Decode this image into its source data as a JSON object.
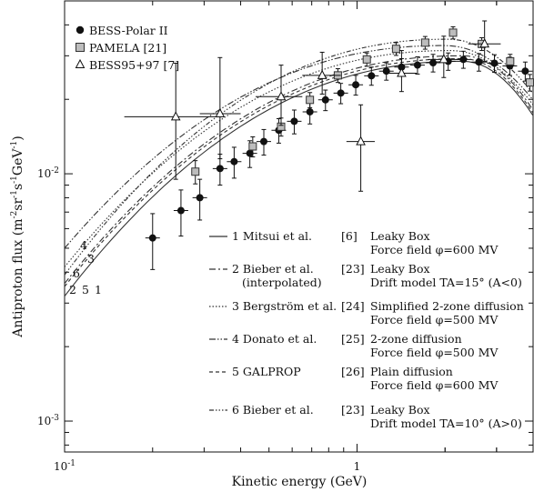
{
  "chart_data": {
    "type": "scatter",
    "xlabel": "Kinetic energy (GeV)",
    "ylabel": "Antiproton flux (m",
    "ylabel_parts": [
      "Antiproton flux (m",
      "-2",
      "sr",
      "-1",
      "s",
      "-1",
      "GeV",
      "-1",
      ")"
    ],
    "x_scale": "log",
    "y_scale": "log",
    "xlim": [
      0.1,
      4.0
    ],
    "ylim": [
      0.00075,
      0.05
    ],
    "x_tick_labels": [
      {
        "value": 0.1,
        "base": "10",
        "exp": "-1"
      },
      {
        "value": 1,
        "base": "1",
        "exp": ""
      }
    ],
    "y_tick_labels": [
      {
        "value": 0.01,
        "base": "10",
        "exp": "-2"
      },
      {
        "value": 0.001,
        "base": "10",
        "exp": "-3"
      }
    ],
    "series": [
      {
        "name": "BESS-Polar II",
        "marker": "filled-circle",
        "x": [
          0.2,
          0.25,
          0.29,
          0.34,
          0.38,
          0.43,
          0.48,
          0.54,
          0.61,
          0.69,
          0.78,
          0.88,
          0.99,
          1.12,
          1.26,
          1.42,
          1.61,
          1.82,
          2.05,
          2.31,
          2.61,
          2.95,
          3.33,
          3.76
        ],
        "y": [
          0.0055,
          0.0071,
          0.008,
          0.0105,
          0.0112,
          0.0121,
          0.0135,
          0.015,
          0.0163,
          0.0178,
          0.0199,
          0.0212,
          0.0229,
          0.0249,
          0.026,
          0.027,
          0.0275,
          0.0281,
          0.0285,
          0.029,
          0.0283,
          0.028,
          0.0273,
          0.026
        ],
        "yerr": [
          0.0014,
          0.0015,
          0.0015,
          0.0015,
          0.0016,
          0.0015,
          0.0016,
          0.0017,
          0.0018,
          0.0019,
          0.0019,
          0.002,
          0.0021,
          0.0021,
          0.0021,
          0.0022,
          0.0022,
          0.0023,
          0.0023,
          0.0023,
          0.0023,
          0.0023,
          0.0023,
          0.0023
        ]
      },
      {
        "name": "PAMELA",
        "ref": "[21]",
        "marker": "filled-square",
        "x": [
          0.28,
          0.44,
          0.55,
          0.69,
          0.86,
          1.08,
          1.36,
          1.71,
          2.13,
          2.67,
          3.34,
          3.9
        ],
        "y": [
          0.0102,
          0.0129,
          0.0155,
          0.0199,
          0.025,
          0.029,
          0.032,
          0.0339,
          0.0372,
          0.0335,
          0.0285,
          0.0234
        ],
        "yerr": [
          0.0011,
          0.0012,
          0.0013,
          0.0014,
          0.0016,
          0.0018,
          0.0019,
          0.002,
          0.0021,
          0.002,
          0.0019,
          0.0018
        ]
      },
      {
        "name": "BESS95+97",
        "ref": "[7]",
        "marker": "open-triangle",
        "x": [
          0.24,
          0.34,
          0.55,
          0.76,
          1.03,
          1.42,
          1.98,
          2.73
        ],
        "y": [
          0.017,
          0.0175,
          0.0205,
          0.025,
          0.0135,
          0.0255,
          0.029,
          0.0335
        ],
        "yerr_up": [
          0.011,
          0.012,
          0.007,
          0.006,
          0.0055,
          0.006,
          0.007,
          0.008
        ],
        "yerr_dn": [
          0.0075,
          0.006,
          0.0048,
          0.004,
          0.005,
          0.004,
          0.0045,
          0.005
        ],
        "xerr_lo": [
          0.16,
          0.29,
          0.45,
          0.65,
          0.92,
          1.25,
          1.75,
          2.4
        ],
        "xerr_hi": [
          0.34,
          0.4,
          0.65,
          0.88,
          1.15,
          1.6,
          2.25,
          3.1
        ]
      }
    ],
    "models": [
      {
        "num": "1",
        "name": "Mitsui et al.",
        "ref": "[6]",
        "desc1": "Leaky Box",
        "desc2": "Force field φ=600 MV",
        "dash": "",
        "end_label": "1",
        "curve_y_at_min": 0.0032,
        "peak_x": 2.3,
        "peak_y": 0.0285
      },
      {
        "num": "2",
        "name": "Bieber et al.",
        "name2": "(interpolated)",
        "ref": "[23]",
        "desc1": "Leaky Box",
        "desc2": "Drift model TA=15° (A<0)",
        "dash": "7 3 2 3",
        "end_label": "2",
        "curve_y_at_min": 0.0036,
        "peak_x": 2.3,
        "peak_y": 0.03
      },
      {
        "num": "3",
        "name": "Bergström et al.",
        "ref": "[24]",
        "desc1": "Simplified 2-zone diffusion",
        "desc2": "Force field φ=500 MV",
        "dash": "1.5 2",
        "end_label": "3",
        "curve_y_at_min": 0.0042,
        "peak_x": 2.1,
        "peak_y": 0.0315
      },
      {
        "num": "4",
        "name": "Donato et al.",
        "ref": "[25]",
        "desc1": "2-zone diffusion",
        "desc2": "Force field φ=500 MV",
        "dash": "7 2 1.5 2 1.5 2",
        "end_label": "4",
        "curve_y_at_min": 0.005,
        "peak_x": 2.0,
        "peak_y": 0.033
      },
      {
        "num": "5",
        "name": "GALPROP",
        "ref": "[26]",
        "desc1": "Plain diffusion",
        "desc2": "Force field φ=600 MV",
        "dash": "4 3",
        "end_label": "5",
        "curve_y_at_min": 0.0035,
        "peak_x": 2.3,
        "peak_y": 0.0292
      },
      {
        "num": "6",
        "name": "Bieber et al.",
        "ref": "[23]",
        "desc1": "Leaky Box",
        "desc2": "Drift model TA=10° (A>0)",
        "dash": "5 2 1.5 2 1.5 2 1.5 2",
        "end_label": "6",
        "curve_y_at_min": 0.0039,
        "peak_x": 2.05,
        "peak_y": 0.035
      }
    ],
    "legend_top_placement": "top-left",
    "legend_models_placement": "bottom-right",
    "grid": false
  }
}
